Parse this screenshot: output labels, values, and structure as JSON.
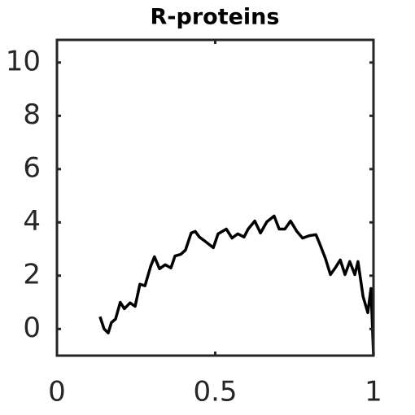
{
  "chart_data": {
    "type": "line",
    "title": "R-proteins",
    "x": [
      0.136,
      0.149,
      0.162,
      0.172,
      0.185,
      0.2,
      0.213,
      0.231,
      0.247,
      0.262,
      0.278,
      0.296,
      0.308,
      0.324,
      0.342,
      0.36,
      0.373,
      0.391,
      0.406,
      0.424,
      0.437,
      0.45,
      0.468,
      0.494,
      0.509,
      0.535,
      0.553,
      0.571,
      0.591,
      0.604,
      0.625,
      0.643,
      0.663,
      0.686,
      0.702,
      0.72,
      0.738,
      0.758,
      0.776,
      0.797,
      0.818,
      0.83,
      0.848,
      0.864,
      0.879,
      0.895,
      0.91,
      0.925,
      0.941,
      0.951,
      0.967,
      0.982,
      0.992,
      1.0
    ],
    "series": [
      {
        "color": "#000000",
        "values": [
          0.46,
          0.0,
          -0.15,
          0.24,
          0.37,
          1.0,
          0.76,
          0.98,
          0.85,
          1.68,
          1.62,
          2.35,
          2.71,
          2.26,
          2.41,
          2.29,
          2.74,
          2.8,
          2.96,
          3.6,
          3.66,
          3.45,
          3.29,
          3.05,
          3.57,
          3.75,
          3.41,
          3.57,
          3.45,
          3.75,
          4.05,
          3.6,
          4.02,
          4.24,
          3.75,
          3.75,
          4.05,
          3.66,
          3.41,
          3.5,
          3.54,
          3.2,
          2.65,
          2.04,
          2.29,
          2.59,
          2.04,
          2.53,
          2.04,
          2.53,
          1.22,
          0.61,
          1.52,
          -0.98
        ]
      }
    ],
    "xlim": [
      0,
      1
    ],
    "xticks": [
      0,
      0.5,
      1
    ],
    "ylim": [
      -1,
      10.85
    ],
    "yticks": [
      0,
      2,
      4,
      6,
      8,
      10
    ]
  }
}
